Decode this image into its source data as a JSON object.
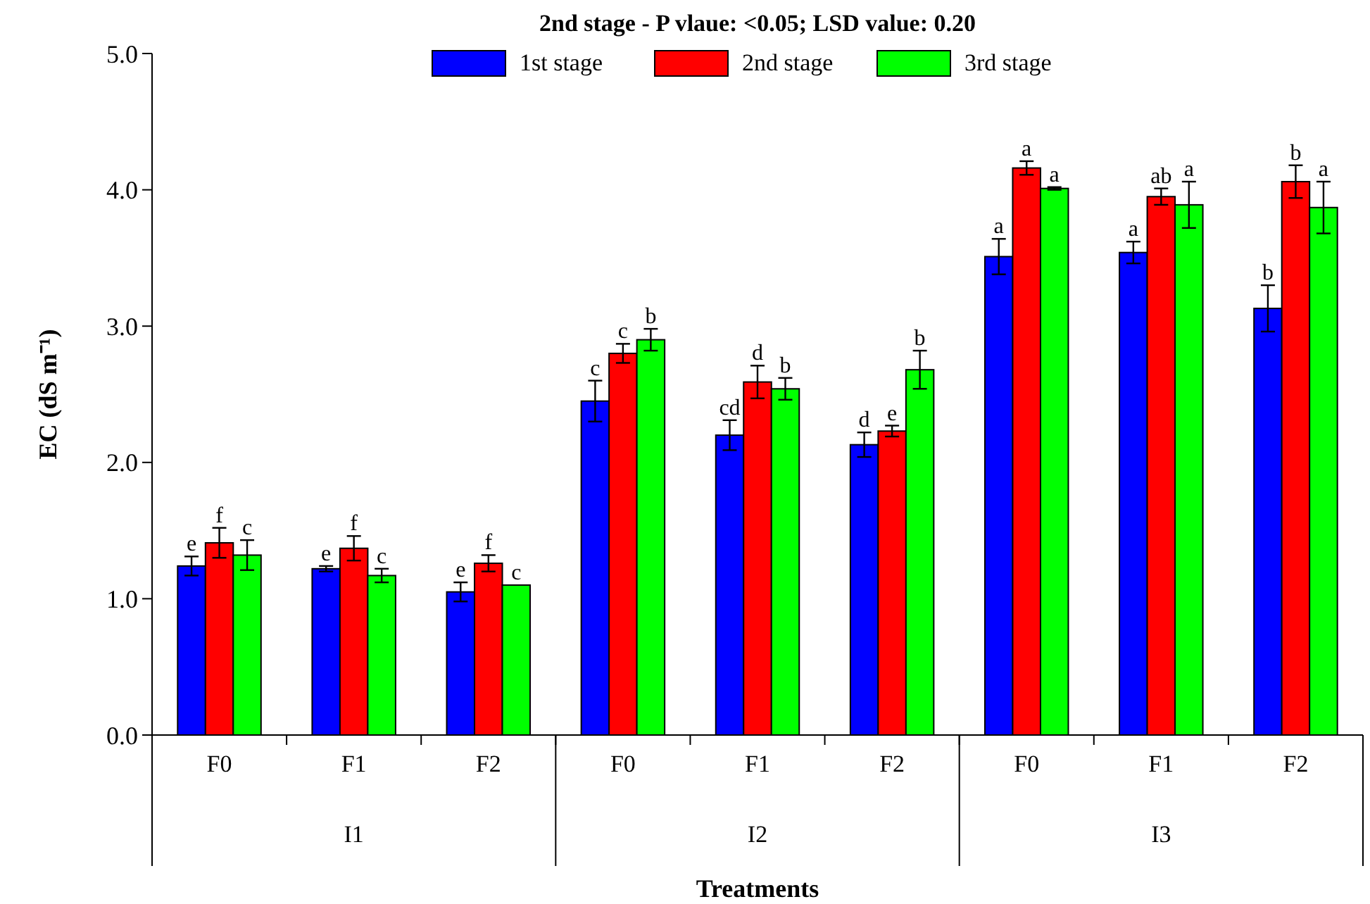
{
  "chart_data": {
    "type": "bar",
    "title": "2nd stage - P vlaue: <0.05; LSD value: 0.20",
    "xlabel": "Treatments",
    "ylabel": "EC (dS m⁻¹)",
    "categories": [
      "F0",
      "F1",
      "F2",
      "F0",
      "F1",
      "F2",
      "F0",
      "F1",
      "F2"
    ],
    "annotations": [
      "I1",
      "I2",
      "I3"
    ],
    "series": [
      {
        "name": "1st stage",
        "color": "#0000ff",
        "values": [
          1.24,
          1.22,
          1.05,
          2.45,
          2.2,
          2.13,
          3.51,
          3.54,
          3.13
        ],
        "errors": [
          0.07,
          0.02,
          0.07,
          0.15,
          0.11,
          0.09,
          0.13,
          0.08,
          0.17
        ],
        "value_labels": [
          "e",
          "e",
          "e",
          "c",
          "cd",
          "d",
          "a",
          "a",
          "b"
        ]
      },
      {
        "name": "2nd stage",
        "color": "#ff0000",
        "values": [
          1.41,
          1.37,
          1.26,
          2.8,
          2.59,
          2.23,
          4.16,
          3.95,
          4.06
        ],
        "errors": [
          0.11,
          0.09,
          0.06,
          0.07,
          0.12,
          0.04,
          0.05,
          0.06,
          0.12
        ],
        "value_labels": [
          "f",
          "f",
          "f",
          "c",
          "d",
          "e",
          "a",
          "ab",
          "b"
        ]
      },
      {
        "name": "3rd stage",
        "color": "#00ff00",
        "values": [
          1.32,
          1.17,
          1.1,
          2.9,
          2.54,
          2.68,
          4.01,
          3.89,
          3.87
        ],
        "errors": [
          0.11,
          0.05,
          null,
          0.08,
          0.08,
          0.14,
          0.01,
          0.17,
          0.19
        ],
        "value_labels": [
          "c",
          "c",
          "c",
          "b",
          "b",
          "b",
          "a",
          "a",
          "a"
        ]
      }
    ],
    "ylim": [
      0,
      5
    ],
    "yticks": [
      {
        "value": 0,
        "label": "0.0"
      },
      {
        "value": 1,
        "label": "1.0"
      },
      {
        "value": 2,
        "label": "2.0"
      },
      {
        "value": 3,
        "label": "3.0"
      },
      {
        "value": 4,
        "label": "4.0"
      },
      {
        "value": 5,
        "label": "5.0"
      }
    ],
    "legend": "top",
    "grid": false
  }
}
